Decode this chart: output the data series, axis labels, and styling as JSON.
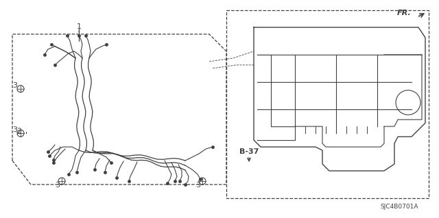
{
  "bg_color": "#ffffff",
  "line_color": "#404040",
  "label_1": "1",
  "label_2": "2",
  "label_3": "3",
  "label_b37": "B-37",
  "label_fr": "FR.",
  "label_code": "SJC4B0701A",
  "figsize": [
    6.4,
    3.19
  ],
  "dpi": 100
}
